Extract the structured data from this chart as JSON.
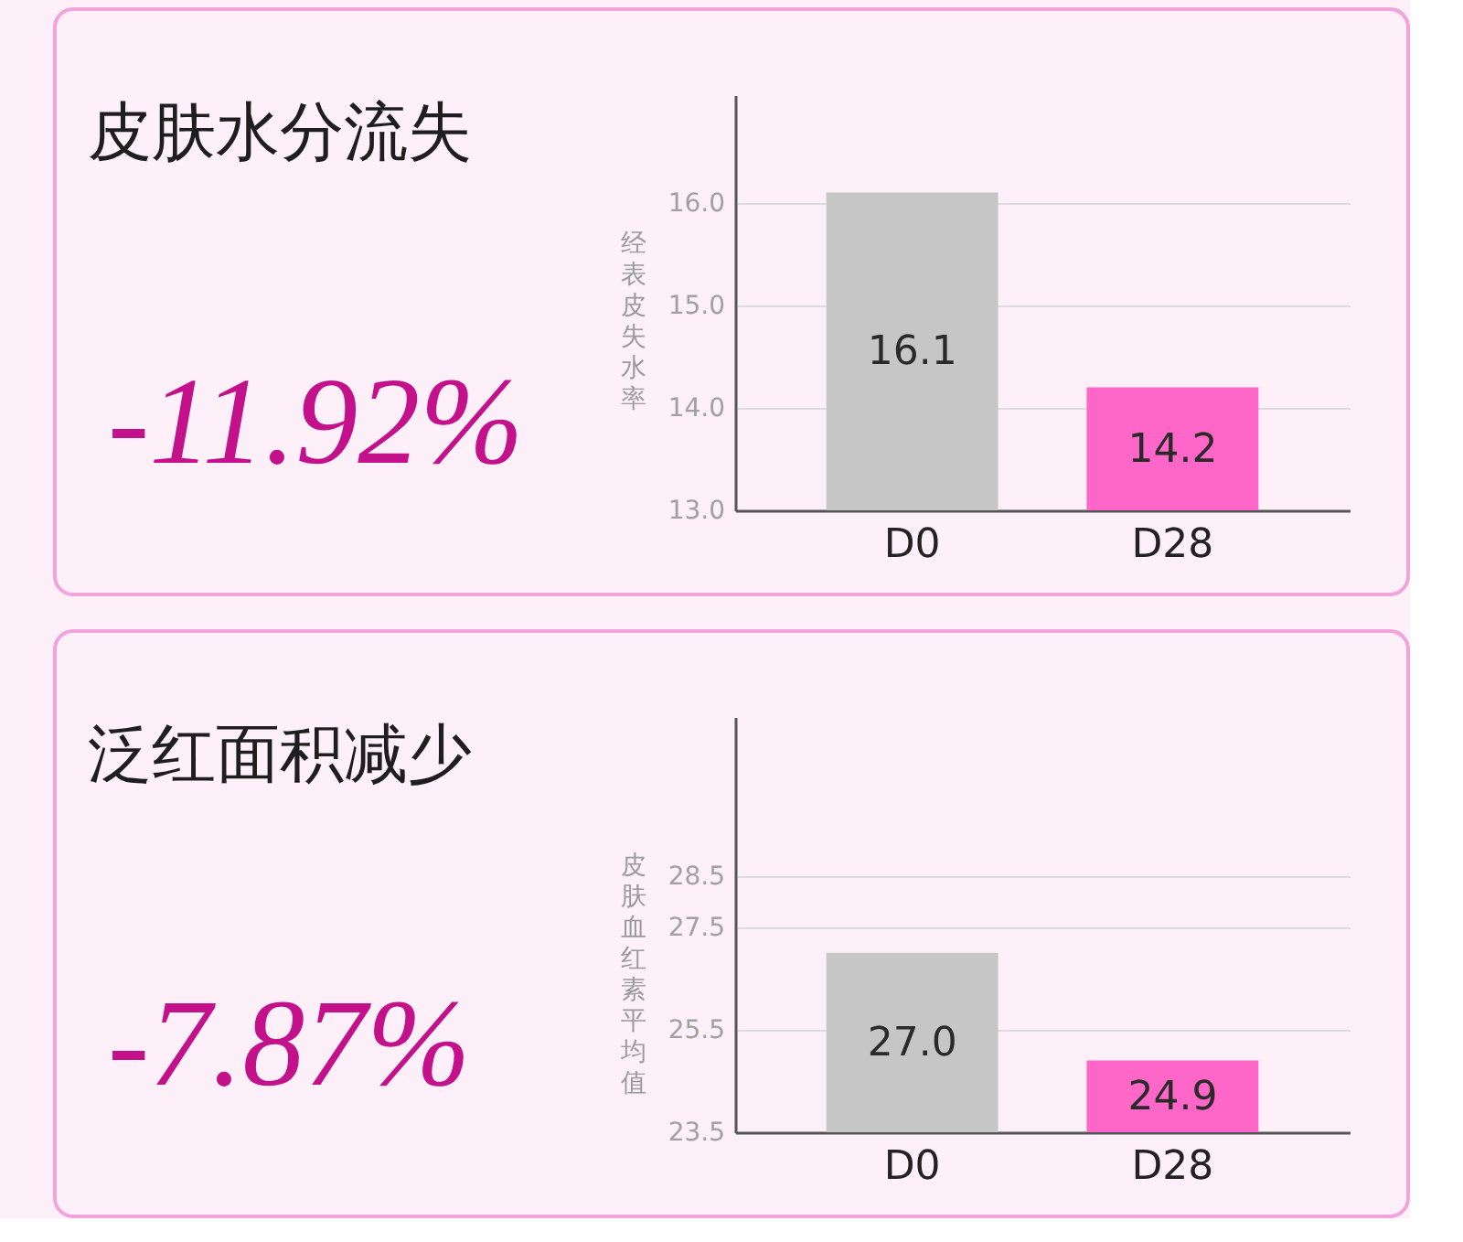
{
  "chart_data": [
    {
      "type": "bar",
      "title": "皮肤水分流失",
      "annotations": [
        "-11.92%"
      ],
      "ylabel": "经表皮失水率",
      "categories": [
        "D0",
        "D28"
      ],
      "values": [
        16.1,
        14.2
      ],
      "colors": [
        "#c6c6c6",
        "#fe66c8"
      ],
      "value_labels": [
        "16.1",
        "14.2"
      ],
      "ylim": [
        13,
        17.05
      ],
      "yticks": [
        {
          "value": 13,
          "label": "13.0"
        },
        {
          "value": 14,
          "label": "14.0"
        },
        {
          "value": 15,
          "label": "15.0"
        },
        {
          "value": 16,
          "label": "16.0"
        }
      ],
      "grid": "y"
    },
    {
      "type": "bar",
      "title": "泛红面积减少",
      "annotations": [
        "-7.87%"
      ],
      "ylabel": "皮肤血红素平均值",
      "categories": [
        "D0",
        "D28"
      ],
      "values": [
        27.0,
        24.9
      ],
      "colors": [
        "#c6c6c6",
        "#fe66c8"
      ],
      "value_labels": [
        "27.0",
        "24.9"
      ],
      "ylim": [
        23.5,
        31.6
      ],
      "yticks": [
        23.5,
        25.5,
        27.5,
        28.5
      ],
      "grid": "y"
    }
  ]
}
